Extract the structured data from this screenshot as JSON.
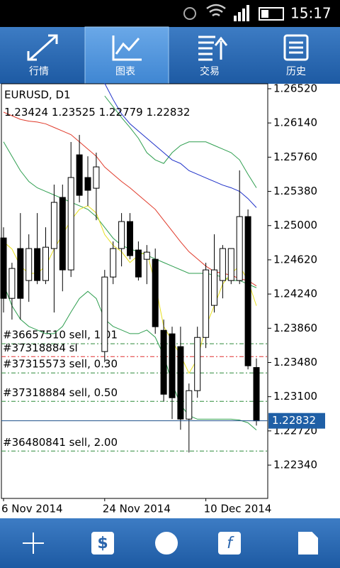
{
  "status_bar": {
    "time": "15:17"
  },
  "tabs": [
    "行情",
    "图表",
    "交易",
    "历史"
  ],
  "chart_data": {
    "type": "candlestick",
    "title": "EURUSD, D1",
    "categories": [
      "6 Nov 2014",
      null,
      null,
      null,
      null,
      null,
      null,
      null,
      null,
      null,
      null,
      null,
      "24 Nov 2014",
      null,
      null,
      null,
      null,
      null,
      null,
      null,
      null,
      null,
      null,
      null,
      "10 Dec 2014",
      null,
      null,
      null,
      null,
      null,
      null
    ],
    "open": [
      1.24863,
      1.24192,
      1.24745,
      1.2439,
      1.24745,
      1.2439,
      1.24745,
      1.25313,
      1.24508,
      1.25786,
      1.25534,
      1.25415,
      1.23601,
      1.24429,
      1.24745,
      1.25045,
      1.24729,
      1.24626,
      1.24626,
      1.23837,
      1.23798,
      1.23656,
      1.22851,
      1.23167,
      1.23758,
      1.24114,
      1.2439,
      1.2439,
      1.2439,
      1.251,
      1.23424
    ],
    "high": [
      1.24981,
      1.24587,
      1.25139,
      1.24903,
      1.25139,
      1.24981,
      1.25455,
      1.25455,
      1.25928,
      1.26007,
      1.2577,
      1.2581,
      1.24508,
      1.24824,
      1.25139,
      1.25139,
      1.24824,
      1.24784,
      1.24745,
      1.23956,
      1.23877,
      1.23877,
      1.23246,
      1.23877,
      1.24587,
      1.24903,
      1.24784,
      1.24745,
      1.25613,
      1.25179,
      1.23525
    ],
    "low": [
      1.24035,
      1.23956,
      1.23956,
      1.24153,
      1.2435,
      1.2435,
      1.24035,
      1.24271,
      1.24429,
      1.25258,
      1.25218,
      1.2506,
      1.23482,
      1.2435,
      1.24547,
      1.24626,
      1.2439,
      1.2435,
      1.23798,
      1.23048,
      1.22851,
      1.22733,
      1.2248,
      1.23088,
      1.2364,
      1.24035,
      1.24192,
      1.2435,
      1.2435,
      1.23403,
      1.22779
    ],
    "close": [
      1.24192,
      1.24524,
      1.24192,
      1.24745,
      1.2439,
      1.2476,
      1.25258,
      1.24508,
      1.25534,
      1.25336,
      1.25392,
      1.25652,
      1.24429,
      1.24745,
      1.25045,
      1.24666,
      1.24429,
      1.24705,
      1.23877,
      1.23127,
      1.23088,
      1.22851,
      1.23167,
      1.23758,
      1.24508,
      1.24508,
      1.24745,
      1.24745,
      1.251,
      1.23443,
      1.22832
    ],
    "lines": [
      {
        "color": "#2e9e4f",
        "values": [
          null,
          null,
          null,
          null,
          null,
          null,
          null,
          null,
          null,
          null,
          null,
          null,
          1.2644,
          1.2632,
          1.262,
          1.2609,
          1.2597,
          1.2581,
          1.2573,
          1.2569,
          1.2581,
          1.2589,
          1.2593,
          1.2593,
          1.2593,
          1.2589,
          1.2585,
          1.2581,
          1.2573,
          1.2557,
          1.2542
        ]
      },
      {
        "color": "#2e9e4f",
        "values": [
          1.2593,
          1.2577,
          1.2561,
          1.2549,
          1.2542,
          1.2538,
          1.2534,
          1.253,
          1.2526,
          1.2522,
          1.2518,
          1.251,
          1.2498,
          1.2486,
          1.2478,
          1.2474,
          1.2471,
          1.2467,
          1.2463,
          1.2459,
          1.2455,
          1.2451,
          1.2447,
          1.2447,
          1.2447,
          1.2445,
          1.2443,
          1.2439,
          1.2439,
          1.2435,
          1.2431
        ]
      },
      {
        "color": "#2e9e4f",
        "values": [
          1.2435,
          1.2411,
          1.2396,
          1.2388,
          1.2384,
          1.238,
          1.238,
          1.2388,
          1.2404,
          1.2419,
          1.2427,
          1.2419,
          1.2396,
          1.2388,
          1.2384,
          1.238,
          1.238,
          1.2384,
          1.2376,
          1.2356,
          1.2325,
          1.2301,
          1.2289,
          1.2285,
          1.2285,
          1.2285,
          1.2285,
          1.2285,
          1.2284,
          1.2281,
          1.2273
        ]
      },
      {
        "color": "#e03a2a",
        "values": [
          1.2626,
          1.2622,
          1.2618,
          1.2616,
          1.2615,
          1.2613,
          1.2609,
          1.2605,
          1.2601,
          1.2593,
          1.2585,
          1.2577,
          1.2565,
          1.2557,
          1.2549,
          1.2542,
          1.2534,
          1.2526,
          1.2518,
          1.2506,
          1.2494,
          1.2482,
          1.2471,
          1.2463,
          1.2455,
          1.2449,
          1.2447,
          1.2445,
          1.2441,
          1.2439,
          1.2433
        ]
      },
      {
        "color": "#1c2fc8",
        "values": [
          null,
          null,
          null,
          null,
          null,
          null,
          null,
          null,
          null,
          null,
          null,
          null,
          1.2658,
          1.264,
          1.2624,
          1.2613,
          1.2605,
          1.2597,
          1.2589,
          1.2581,
          1.2573,
          1.2569,
          1.2561,
          1.2557,
          1.2553,
          1.2549,
          1.2545,
          1.2542,
          1.2538,
          1.253,
          1.252
        ]
      },
      {
        "color": "#e8e020",
        "values": [
          1.2482,
          1.2474,
          1.2455,
          1.2447,
          1.2447,
          1.2455,
          1.2474,
          1.249,
          1.2506,
          1.2518,
          1.2522,
          1.2514,
          1.249,
          1.2478,
          1.2471,
          1.2459,
          1.2467,
          1.2471,
          1.2435,
          1.2388,
          1.2372,
          1.2356,
          1.2336,
          1.2352,
          1.2388,
          1.2411,
          1.2435,
          1.2447,
          1.2455,
          1.2439,
          1.2411
        ]
      }
    ],
    "levels": [
      {
        "label": "#36657510 sell, 1.01",
        "value": 1.23688,
        "color": "#2e8b3a"
      },
      {
        "label": "#37318884 sl",
        "value": 1.23545,
        "color": "#e03030"
      },
      {
        "label": "#37315573 sell, 0.30",
        "value": 1.23364,
        "color": "#2e8b3a"
      },
      {
        "label": "#37318884 sell, 0.50",
        "value": 1.23048,
        "color": "#2e8b3a"
      },
      {
        "label": "#36480841 sell, 2.00",
        "value": 1.22496,
        "color": "#2e8b3a"
      }
    ],
    "current_price": 1.22832,
    "ylim": [
      1.2197,
      1.26575
    ],
    "yticks": [
      {
        "value": 1.2652,
        "label": "1.26520"
      },
      {
        "value": 1.2614,
        "label": "1.26140"
      },
      {
        "value": 1.2576,
        "label": "1.25760"
      },
      {
        "value": 1.2538,
        "label": "1.25380"
      },
      {
        "value": 1.25,
        "label": "1.25000"
      },
      {
        "value": 1.2462,
        "label": "1.24620"
      },
      {
        "value": 1.2424,
        "label": "1.24240"
      },
      {
        "value": 1.2386,
        "label": "1.23860"
      },
      {
        "value": 1.2348,
        "label": "1.23480"
      },
      {
        "value": 1.231,
        "label": "1.23100"
      },
      {
        "value": 1.2272,
        "label": "1.22720"
      },
      {
        "value": 1.2234,
        "label": "1.22340"
      }
    ]
  }
}
